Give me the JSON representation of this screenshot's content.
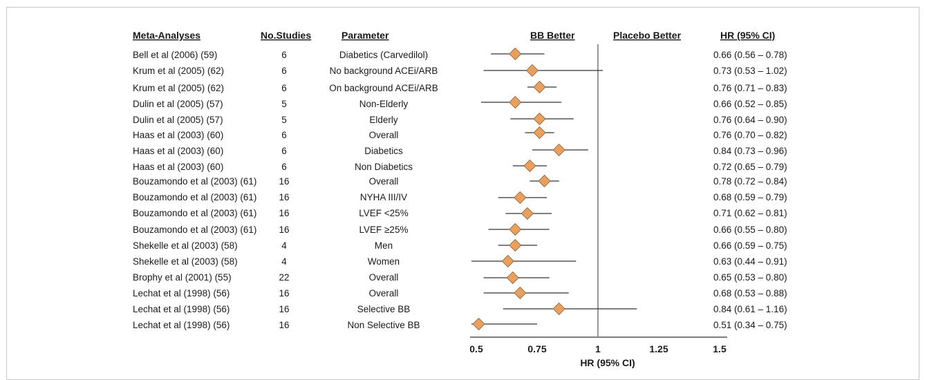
{
  "headers": {
    "meta": "Meta-Analyses",
    "studies": "No.Studies",
    "parameter": "Parameter",
    "bb_better": "BB Better",
    "placebo_better": "Placebo Better",
    "hr": "HR (95% CI)"
  },
  "rows": [
    {
      "meta": "Bell et al (2006) (59)",
      "studies": "6",
      "parameter": "Diabetics (Carvedilol)",
      "hr_text": "0.66 (0.56 – 0.78)"
    },
    {
      "meta": "Krum et al (2005)  (62)",
      "studies": "6",
      "parameter": "No background ACEi/ARB",
      "hr_text": "0.73 (0.53 – 1.02)"
    },
    {
      "meta": "Krum et al (2005) (62)",
      "studies": "6",
      "parameter": "On background ACEi/ARB",
      "hr_text": "0.76 (0.71 – 0.83)"
    },
    {
      "meta": "Dulin et al (2005) (57)",
      "studies": "5",
      "parameter": "Non-Elderly",
      "hr_text": "0.66 (0.52 – 0.85)"
    },
    {
      "meta": "Dulin et al (2005) (57)",
      "studies": "5",
      "parameter": "Elderly",
      "hr_text": "0.76 (0.64 – 0.90)"
    },
    {
      "meta": "Haas et al (2003) (60)",
      "studies": "6",
      "parameter": "Overall",
      "hr_text": "0.76 (0.70 – 0.82)"
    },
    {
      "meta": "Haas et al (2003) (60)",
      "studies": "6",
      "parameter": "Diabetics",
      "hr_text": "0.84 (0.73 – 0.96)"
    },
    {
      "meta": "Haas et al (2003) (60)",
      "studies": "6",
      "parameter": "Non Diabetics",
      "hr_text": "0.72 (0.65 – 0.79)"
    },
    {
      "meta": "Bouzamondo et al (2003) (61)",
      "studies": "16",
      "parameter": "Overall",
      "hr_text": "0.78 (0.72 – 0.84)"
    },
    {
      "meta": "Bouzamondo et al (2003) (61)",
      "studies": "16",
      "parameter": "NYHA III/IV",
      "hr_text": "0.68 (0.59 – 0.79)"
    },
    {
      "meta": "Bouzamondo et al (2003) (61)",
      "studies": "16",
      "parameter": "LVEF <25%",
      "hr_text": "0.71 (0.62 – 0.81)"
    },
    {
      "meta": "Bouzamondo et al (2003) (61)",
      "studies": "16",
      "parameter": "LVEF ≥25%",
      "hr_text": "0.66 (0.55 – 0.80)"
    },
    {
      "meta": "Shekelle  et al (2003) (58)",
      "studies": "4",
      "parameter": "Men",
      "hr_text": "0.66 (0.59 – 0.75)"
    },
    {
      "meta": "Shekelle  et al (2003) (58)",
      "studies": "4",
      "parameter": "Women",
      "hr_text": "0.63 (0.44 – 0.91)"
    },
    {
      "meta": "Brophy et al (2001)  (55)",
      "studies": "22",
      "parameter": "Overall",
      "hr_text": "0.65 (0.53 – 0.80)"
    },
    {
      "meta": "Lechat et al (1998)  (56)",
      "studies": "16",
      "parameter": "Overall",
      "hr_text": "0.68 (0.53 – 0.88)"
    },
    {
      "meta": "Lechat et al (1998)  (56)",
      "studies": "16",
      "parameter": "Selective BB",
      "hr_text": "0.84 (0.61 – 1.16)"
    },
    {
      "meta": "Lechat et al (1998)  (56)",
      "studies": "16",
      "parameter": "Non Selective BB",
      "hr_text": "0.51 (0.34 – 0.75)"
    }
  ],
  "chart_data": {
    "type": "forest",
    "xlabel": "HR (95% CI)",
    "xlim": [
      0.5,
      1.5
    ],
    "xticks": [
      0.5,
      0.75,
      1,
      1.25,
      1.5
    ],
    "xtick_labels": [
      "0.5",
      "0.75",
      "1",
      "1.25",
      "1.5"
    ],
    "reference_line": 1,
    "marker_color": "#e8a060",
    "marker_stroke": "#8a5a2a",
    "estimates": [
      0.66,
      0.73,
      0.76,
      0.66,
      0.76,
      0.76,
      0.84,
      0.72,
      0.78,
      0.68,
      0.71,
      0.66,
      0.66,
      0.63,
      0.65,
      0.68,
      0.84,
      0.51
    ],
    "lower": [
      0.56,
      0.53,
      0.71,
      0.52,
      0.64,
      0.7,
      0.73,
      0.65,
      0.72,
      0.59,
      0.62,
      0.55,
      0.59,
      0.44,
      0.53,
      0.53,
      0.61,
      0.34
    ],
    "upper": [
      0.78,
      1.02,
      0.83,
      0.85,
      0.9,
      0.82,
      0.96,
      0.79,
      0.84,
      0.79,
      0.81,
      0.8,
      0.75,
      0.91,
      0.8,
      0.88,
      1.16,
      0.75
    ]
  }
}
